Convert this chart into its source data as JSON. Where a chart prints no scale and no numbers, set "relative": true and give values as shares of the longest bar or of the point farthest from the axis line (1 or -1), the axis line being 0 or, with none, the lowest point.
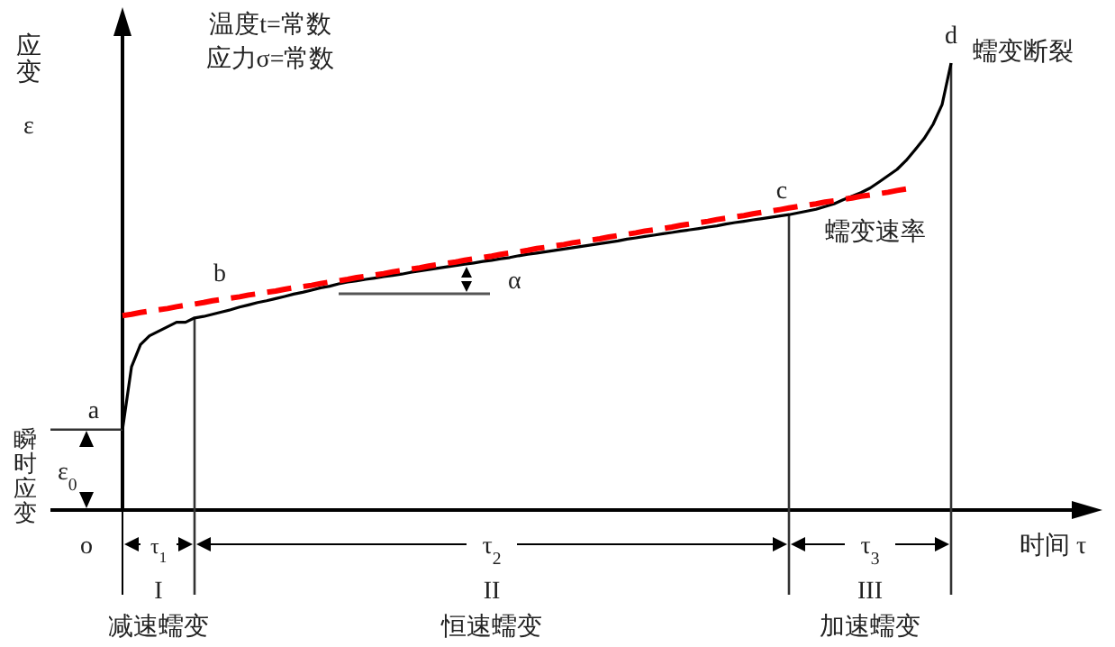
{
  "chart_data": {
    "type": "line",
    "relative": true,
    "marker": "none",
    "title": "温度t=常数",
    "subtitle": "应力σ=常数",
    "xlabel": "时间 τ",
    "ylabel": "应变 ε",
    "categories": [
      null,
      null,
      null,
      null,
      null,
      null,
      null,
      null,
      null,
      null,
      null,
      null,
      null,
      null,
      null,
      null,
      null,
      null,
      null,
      null,
      null,
      null,
      null,
      null,
      null,
      null,
      null,
      null,
      null,
      null,
      null,
      null,
      null,
      null,
      null,
      null,
      null,
      null,
      null,
      null,
      null,
      null,
      null,
      null,
      null,
      null,
      null,
      null,
      null,
      null,
      null,
      null,
      null,
      null,
      null,
      null,
      null,
      null,
      null,
      null,
      null,
      null,
      null,
      null,
      null,
      null,
      null,
      null,
      null,
      null,
      null,
      null,
      null,
      null,
      null,
      null,
      null,
      null,
      null,
      null,
      null,
      null,
      null,
      null,
      null,
      null,
      null,
      null,
      null,
      null,
      null,
      null,
      null
    ],
    "series": [
      {
        "color": "#000000",
        "line_style": "solid",
        "values": [
          0.18,
          0.32,
          0.37,
          0.39,
          0.4,
          0.41,
          0.42,
          0.42,
          0.43,
          0.433,
          0.438,
          0.443,
          0.448,
          0.454,
          0.459,
          0.464,
          0.468,
          0.473,
          0.478,
          0.483,
          0.487,
          0.492,
          0.497,
          0.501,
          0.506,
          0.51,
          0.513,
          0.516,
          0.519,
          0.522,
          0.525,
          0.528,
          0.532,
          0.535,
          0.538,
          0.541,
          0.544,
          0.547,
          0.55,
          0.553,
          0.556,
          0.559,
          0.562,
          0.565,
          0.569,
          0.572,
          0.575,
          0.578,
          0.581,
          0.584,
          0.587,
          0.59,
          0.593,
          0.596,
          0.599,
          0.602,
          0.606,
          0.609,
          0.612,
          0.615,
          0.618,
          0.621,
          0.624,
          0.627,
          0.63,
          0.633,
          0.636,
          0.64,
          0.643,
          0.646,
          0.649,
          0.652,
          0.655,
          0.658,
          0.661,
          0.665,
          0.669,
          0.673,
          0.679,
          0.685,
          0.694,
          0.702,
          0.71,
          0.72,
          0.734,
          0.748,
          0.762,
          0.782,
          0.806,
          0.831,
          0.863,
          0.907,
          1
        ]
      },
      {
        "name": "蠕变速率",
        "color": "#ff0000",
        "line_style": "dashed",
        "values": [
          0.435,
          0.438,
          0.442,
          0.445,
          0.448,
          0.451,
          0.455,
          0.458,
          0.461,
          0.464,
          0.468,
          0.471,
          0.474,
          0.477,
          0.481,
          0.484,
          0.487,
          0.49,
          0.494,
          0.497,
          0.5,
          0.503,
          0.507,
          0.51,
          0.513,
          0.516,
          0.52,
          0.523,
          0.526,
          0.529,
          0.533,
          0.536,
          0.539,
          0.542,
          0.546,
          0.549,
          0.552,
          0.555,
          0.559,
          0.562,
          0.565,
          0.568,
          0.572,
          0.575,
          0.578,
          0.581,
          0.585,
          0.588,
          0.591,
          0.594,
          0.598,
          0.601,
          0.604,
          0.607,
          0.611,
          0.614,
          0.617,
          0.62,
          0.624,
          0.627,
          0.63,
          0.633,
          0.637,
          0.64,
          0.643,
          0.646,
          0.65,
          0.653,
          0.656,
          0.659,
          0.663,
          0.666,
          0.669,
          0.672,
          0.676,
          0.679,
          0.682,
          0.685,
          0.689,
          0.692,
          0.695,
          0.698,
          0.702,
          0.705,
          0.708,
          0.711,
          0.715,
          0.718,
          null,
          null,
          null,
          null,
          null
        ]
      }
    ],
    "annotations": [
      "a",
      "b",
      "c",
      "d",
      "蠕变断裂",
      "α",
      "瞬时应变",
      "ε$_{0}$",
      "o",
      "τ$_{1}$",
      "τ$_{2}$",
      "τ$_{3}$",
      "I",
      "减速蠕变",
      "II",
      "恒速蠕变",
      "III",
      "加速蠕变"
    ]
  }
}
